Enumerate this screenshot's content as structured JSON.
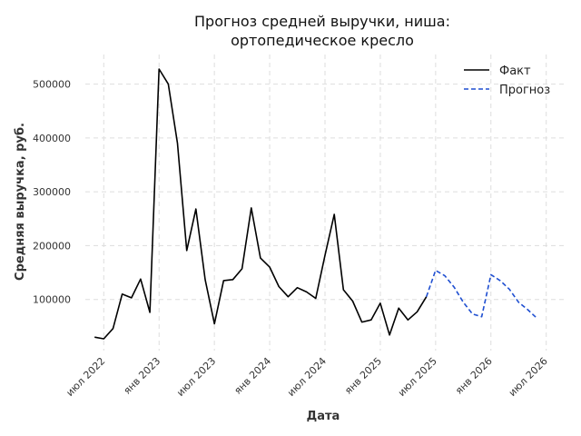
{
  "chart_data": {
    "type": "line",
    "title_lines": [
      "Прогноз средней выручки, ниша:",
      "ортопедическое кресло"
    ],
    "xlabel": "Дата",
    "ylabel": "Средняя выручка, руб.",
    "grid": true,
    "legend_position": "top-right",
    "x_ticks": [
      {
        "label": "июл 2022",
        "date": "2022-07"
      },
      {
        "label": "янв 2023",
        "date": "2023-01"
      },
      {
        "label": "июл 2023",
        "date": "2023-07"
      },
      {
        "label": "янв 2024",
        "date": "2024-01"
      },
      {
        "label": "июл 2024",
        "date": "2024-07"
      },
      {
        "label": "янв 2025",
        "date": "2025-01"
      },
      {
        "label": "июл 2025",
        "date": "2025-07"
      },
      {
        "label": "янв 2026",
        "date": "2026-01"
      },
      {
        "label": "июл 2026",
        "date": "2026-07"
      }
    ],
    "y_ticks": [
      100000,
      200000,
      300000,
      400000,
      500000
    ],
    "xlim": [
      "2022-05",
      "2026-09"
    ],
    "ylim": [
      5000,
      555000
    ],
    "series": [
      {
        "name": "Факт",
        "color": "#000000",
        "dash": "solid",
        "points": [
          [
            "2022-06",
            30000
          ],
          [
            "2022-07",
            27000
          ],
          [
            "2022-08",
            46000
          ],
          [
            "2022-09",
            110000
          ],
          [
            "2022-10",
            103000
          ],
          [
            "2022-11",
            138000
          ],
          [
            "2022-12",
            76000
          ],
          [
            "2023-01",
            528000
          ],
          [
            "2023-02",
            500000
          ],
          [
            "2023-03",
            390000
          ],
          [
            "2023-04",
            191000
          ],
          [
            "2023-05",
            268000
          ],
          [
            "2023-06",
            137000
          ],
          [
            "2023-07",
            55000
          ],
          [
            "2023-08",
            135000
          ],
          [
            "2023-09",
            137000
          ],
          [
            "2023-10",
            157000
          ],
          [
            "2023-11",
            270000
          ],
          [
            "2023-12",
            177000
          ],
          [
            "2024-01",
            160000
          ],
          [
            "2024-02",
            124000
          ],
          [
            "2024-03",
            105000
          ],
          [
            "2024-04",
            122000
          ],
          [
            "2024-05",
            114000
          ],
          [
            "2024-06",
            102000
          ],
          [
            "2024-07",
            182000
          ],
          [
            "2024-08",
            258000
          ],
          [
            "2024-09",
            118000
          ],
          [
            "2024-10",
            97000
          ],
          [
            "2024-11",
            58000
          ],
          [
            "2024-12",
            62000
          ],
          [
            "2025-01",
            93000
          ],
          [
            "2025-02",
            34000
          ],
          [
            "2025-03",
            84000
          ],
          [
            "2025-04",
            62000
          ],
          [
            "2025-05",
            77000
          ],
          [
            "2025-06",
            105000
          ]
        ]
      },
      {
        "name": "Прогноз",
        "color": "#1f4fd1",
        "dash": "dashed",
        "points": [
          [
            "2025-06",
            105000
          ],
          [
            "2025-07",
            154000
          ],
          [
            "2025-08",
            144000
          ],
          [
            "2025-09",
            123000
          ],
          [
            "2025-10",
            95000
          ],
          [
            "2025-11",
            73000
          ],
          [
            "2025-12",
            68000
          ],
          [
            "2026-01",
            146000
          ],
          [
            "2026-02",
            135000
          ],
          [
            "2026-03",
            119000
          ],
          [
            "2026-04",
            95000
          ],
          [
            "2026-05",
            81000
          ],
          [
            "2026-06",
            65000
          ]
        ]
      }
    ]
  }
}
